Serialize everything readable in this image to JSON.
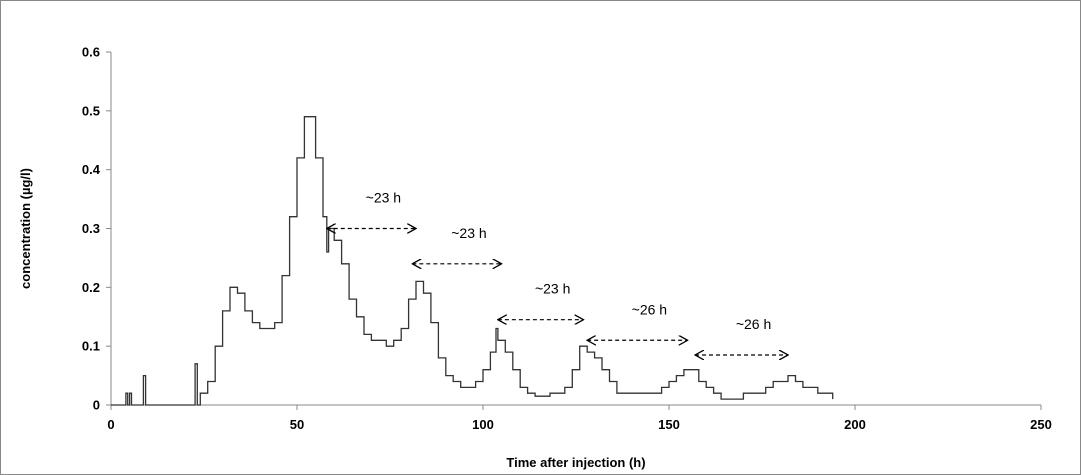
{
  "chart_data": {
    "type": "line",
    "title": "",
    "xlabel": "Time after injection (h)",
    "ylabel": "concentration (µg/l)",
    "xlim": [
      0,
      250
    ],
    "ylim": [
      0,
      0.6
    ],
    "x_ticks": [
      "0",
      "50",
      "100",
      "150",
      "200",
      "250"
    ],
    "y_ticks": [
      "0",
      "0.1",
      "0.2",
      "0.3",
      "0.4",
      "0.5",
      "0.6"
    ],
    "grid": false,
    "legend": "none",
    "line_color": "#333333",
    "series": [
      {
        "points": [
          [
            0,
            0
          ],
          [
            3.5,
            0
          ],
          [
            4,
            0.02
          ],
          [
            4.5,
            0
          ],
          [
            5,
            0.02
          ],
          [
            5.5,
            0
          ],
          [
            8,
            0
          ],
          [
            8.7,
            0.05
          ],
          [
            9.3,
            0
          ],
          [
            22,
            0
          ],
          [
            22.6,
            0.07
          ],
          [
            23.2,
            0
          ],
          [
            24,
            0.02
          ],
          [
            26,
            0.04
          ],
          [
            28,
            0.1
          ],
          [
            30,
            0.16
          ],
          [
            32,
            0.2
          ],
          [
            34,
            0.19
          ],
          [
            36,
            0.16
          ],
          [
            38,
            0.14
          ],
          [
            40,
            0.13
          ],
          [
            42,
            0.13
          ],
          [
            44,
            0.14
          ],
          [
            46,
            0.22
          ],
          [
            48,
            0.32
          ],
          [
            50,
            0.42
          ],
          [
            52,
            0.49
          ],
          [
            53,
            0.49
          ],
          [
            55,
            0.42
          ],
          [
            57,
            0.32
          ],
          [
            58,
            0.26
          ],
          [
            58.5,
            0.3
          ],
          [
            60,
            0.28
          ],
          [
            62,
            0.24
          ],
          [
            64,
            0.18
          ],
          [
            66,
            0.15
          ],
          [
            68,
            0.12
          ],
          [
            70,
            0.11
          ],
          [
            72,
            0.11
          ],
          [
            74,
            0.1
          ],
          [
            76,
            0.11
          ],
          [
            78,
            0.13
          ],
          [
            80,
            0.18
          ],
          [
            82,
            0.21
          ],
          [
            84,
            0.19
          ],
          [
            86,
            0.14
          ],
          [
            88,
            0.08
          ],
          [
            90,
            0.05
          ],
          [
            92,
            0.04
          ],
          [
            94,
            0.03
          ],
          [
            96,
            0.03
          ],
          [
            98,
            0.04
          ],
          [
            100,
            0.06
          ],
          [
            102,
            0.09
          ],
          [
            103.5,
            0.13
          ],
          [
            104,
            0.11
          ],
          [
            106,
            0.09
          ],
          [
            108,
            0.06
          ],
          [
            110,
            0.03
          ],
          [
            112,
            0.02
          ],
          [
            114,
            0.015
          ],
          [
            116,
            0.015
          ],
          [
            118,
            0.02
          ],
          [
            120,
            0.02
          ],
          [
            122,
            0.03
          ],
          [
            124,
            0.06
          ],
          [
            126,
            0.1
          ],
          [
            128,
            0.09
          ],
          [
            130,
            0.08
          ],
          [
            132,
            0.06
          ],
          [
            134,
            0.04
          ],
          [
            136,
            0.02
          ],
          [
            140,
            0.02
          ],
          [
            144,
            0.02
          ],
          [
            148,
            0.03
          ],
          [
            150,
            0.04
          ],
          [
            152,
            0.05
          ],
          [
            154,
            0.06
          ],
          [
            156,
            0.06
          ],
          [
            158,
            0.04
          ],
          [
            160,
            0.03
          ],
          [
            162,
            0.02
          ],
          [
            164,
            0.01
          ],
          [
            166,
            0.01
          ],
          [
            168,
            0.01
          ],
          [
            170,
            0.02
          ],
          [
            172,
            0.02
          ],
          [
            174,
            0.02
          ],
          [
            176,
            0.03
          ],
          [
            178,
            0.04
          ],
          [
            180,
            0.04
          ],
          [
            182,
            0.05
          ],
          [
            184,
            0.04
          ],
          [
            186,
            0.03
          ],
          [
            188,
            0.03
          ],
          [
            190,
            0.02
          ],
          [
            192,
            0.02
          ],
          [
            194,
            0.01
          ]
        ]
      }
    ],
    "annotations": [
      {
        "label": "~23 h",
        "from": 58,
        "to": 82,
        "y": 0.3
      },
      {
        "label": "~23 h",
        "from": 81,
        "to": 105,
        "y": 0.24
      },
      {
        "label": "~23 h",
        "from": 104,
        "to": 127,
        "y": 0.145
      },
      {
        "label": "~26 h",
        "from": 128,
        "to": 155,
        "y": 0.11
      },
      {
        "label": "~26 h",
        "from": 157,
        "to": 182,
        "y": 0.085
      }
    ]
  }
}
